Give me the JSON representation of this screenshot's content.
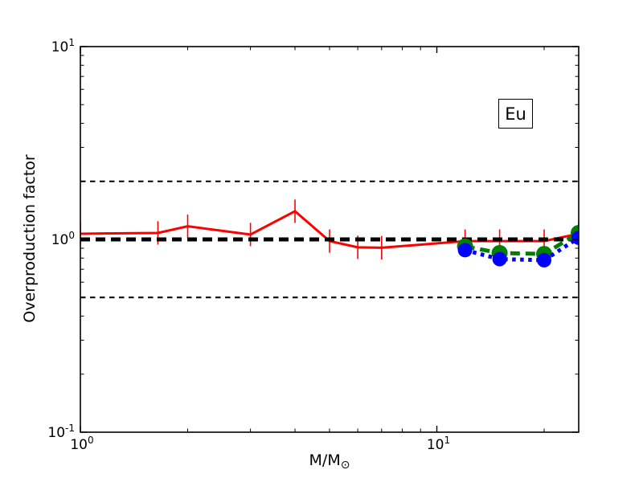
{
  "chart_data": {
    "type": "line",
    "title": "",
    "xlabel_text": "M/M",
    "xlabel_symbol": "⊙",
    "ylabel": "Overproduction factor",
    "xscale": "log",
    "yscale": "log",
    "xlim": [
      1,
      25
    ],
    "ylim": [
      0.1,
      10
    ],
    "grid": false,
    "legend": "none",
    "annotation": {
      "text": "Eu"
    },
    "x_major_ticks": [
      {
        "value": 1,
        "base": "10",
        "exp": "0"
      },
      {
        "value": 10,
        "base": "10",
        "exp": "1"
      }
    ],
    "y_major_ticks": [
      {
        "value": 0.1,
        "base": "10",
        "exp": "-1"
      },
      {
        "value": 1,
        "base": "10",
        "exp": "0"
      },
      {
        "value": 10,
        "base": "10",
        "exp": "1"
      }
    ],
    "reference_lines": [
      {
        "y": 2.0,
        "color": "#000000",
        "style": "dashed",
        "width": 2
      },
      {
        "y": 1.0,
        "color": "#000000",
        "style": "dashed",
        "width": 5
      },
      {
        "y": 0.5,
        "color": "#000000",
        "style": "dashed",
        "width": 2
      }
    ],
    "series": [
      {
        "name": "solid-red-with-errorbars",
        "color": "#ff0000",
        "style": "solid",
        "width": 3,
        "marker": "errorbar",
        "yerr_factor": 1.15,
        "x": [
          1,
          1.65,
          2,
          3,
          4,
          5,
          6,
          7,
          12,
          15,
          20,
          25
        ],
        "values": [
          1.07,
          1.08,
          1.17,
          1.06,
          1.4,
          0.98,
          0.91,
          0.905,
          0.98,
          0.98,
          0.98,
          1.07
        ]
      },
      {
        "name": "dashed-green-circles",
        "color": "#008000",
        "style": "dashed",
        "width": 5,
        "marker": "circle",
        "marker_size": 10,
        "x": [
          12,
          15,
          20,
          25
        ],
        "values": [
          0.92,
          0.85,
          0.84,
          1.08
        ]
      },
      {
        "name": "dotted-blue-circles",
        "color": "#0000ff",
        "style": "dotted",
        "width": 5,
        "marker": "circle",
        "marker_size": 9,
        "x": [
          12,
          15,
          20,
          25
        ],
        "values": [
          0.88,
          0.79,
          0.78,
          1.02
        ]
      }
    ]
  }
}
